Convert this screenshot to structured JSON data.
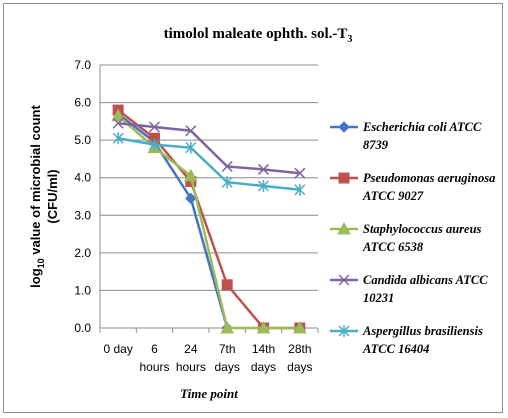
{
  "chart_data": {
    "type": "line",
    "title": "timolol maleate ophth. sol.-T",
    "title_subscript": "3",
    "xlabel": "Time point",
    "ylabel_prefix": "log",
    "ylabel_subscript": "10",
    "ylabel_line1": " value of microbial count",
    "ylabel_line2": "(CFU/ml)",
    "categories": [
      [
        "0 day"
      ],
      [
        "6",
        "hours"
      ],
      [
        "24",
        "hours"
      ],
      [
        "7th",
        "days"
      ],
      [
        "14th",
        "days"
      ],
      [
        "28th",
        "days"
      ]
    ],
    "ylim": [
      0,
      7
    ],
    "yticks": [
      "0.0",
      "1.0",
      "2.0",
      "3.0",
      "4.0",
      "5.0",
      "6.0",
      "7.0"
    ],
    "grid": true,
    "legend_position": "right",
    "series": [
      {
        "name": [
          "Escherichia coli ATCC",
          "8739"
        ],
        "color": "#4472C4",
        "marker": "diamond",
        "values": [
          5.7,
          4.95,
          3.45,
          0.0,
          null,
          null
        ]
      },
      {
        "name": [
          "Pseudomonas aeruginosa",
          "ATCC 9027"
        ],
        "color": "#C0504D",
        "marker": "square",
        "values": [
          5.8,
          5.05,
          3.9,
          1.15,
          0.0,
          0.0
        ]
      },
      {
        "name": [
          "Staphylococcus aureus",
          "ATCC 6538"
        ],
        "color": "#9BBB59",
        "marker": "triangle",
        "values": [
          5.65,
          4.8,
          4.05,
          0.0,
          0.0,
          0.0
        ]
      },
      {
        "name": [
          "Candida albicans ATCC",
          "10231"
        ],
        "color": "#8064A2",
        "marker": "x",
        "values": [
          5.45,
          5.35,
          5.25,
          4.3,
          4.22,
          4.12
        ]
      },
      {
        "name": [
          "Aspergillus brasiliensis",
          "ATCC 16404"
        ],
        "color": "#4BACC6",
        "marker": "star",
        "values": [
          5.05,
          4.88,
          4.8,
          3.88,
          3.78,
          3.68
        ]
      }
    ]
  }
}
